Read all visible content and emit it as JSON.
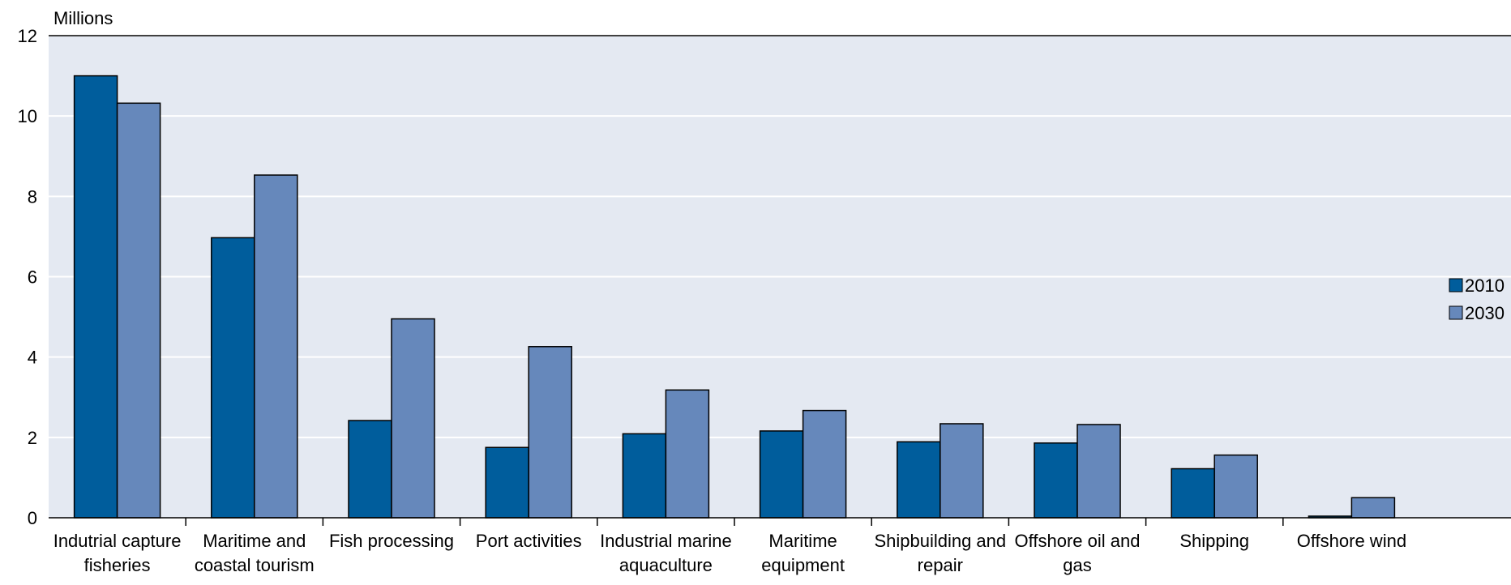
{
  "chart_data": {
    "type": "bar",
    "unit_label": "Millions",
    "categories": [
      [
        "Indutrial capture",
        "fisheries"
      ],
      [
        "Maritime and",
        "coastal tourism"
      ],
      [
        "Fish processing"
      ],
      [
        "Port activities"
      ],
      [
        "Industrial marine",
        "aquaculture"
      ],
      [
        "Maritime",
        "equipment"
      ],
      [
        "Shipbuilding and",
        "repair"
      ],
      [
        "Offshore oil and",
        "gas"
      ],
      [
        "Shipping"
      ],
      [
        "Offshore wind"
      ]
    ],
    "series": [
      {
        "name": "2010",
        "color": "#005d9c",
        "values": [
          11.0,
          6.97,
          2.42,
          1.75,
          2.09,
          2.16,
          1.89,
          1.86,
          1.22,
          0.04
        ]
      },
      {
        "name": "2030",
        "color": "#6688bb",
        "values": [
          10.32,
          8.53,
          4.95,
          4.26,
          3.18,
          2.67,
          2.34,
          2.32,
          1.56,
          0.5
        ]
      }
    ],
    "ylim": [
      0,
      12
    ],
    "yticks": [
      0,
      2,
      4,
      6,
      8,
      10,
      12
    ],
    "grid": true,
    "legend_position": "right"
  }
}
